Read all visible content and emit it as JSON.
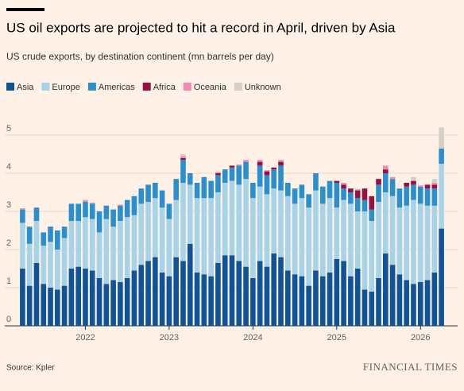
{
  "chart_data": {
    "type": "stacked_bar",
    "title": "US oil exports are projected to hit a record in April, driven by Asia",
    "subtitle": "US crude exports, by destination continent (mn barrels per day)",
    "source": "Source: Kpler",
    "brand": "FINANCIAL TIMES",
    "categories": [
      null,
      null,
      null,
      null,
      null,
      null,
      null,
      null,
      null,
      "2022",
      null,
      null,
      null,
      null,
      null,
      null,
      null,
      null,
      null,
      null,
      null,
      "2023",
      null,
      null,
      null,
      null,
      null,
      null,
      null,
      null,
      null,
      null,
      null,
      "2024",
      null,
      null,
      null,
      null,
      null,
      null,
      null,
      null,
      null,
      null,
      null,
      "2025",
      null,
      null,
      null,
      null,
      null,
      null,
      null,
      null,
      null,
      null,
      null,
      "2026",
      null,
      null,
      null
    ],
    "series": [
      {
        "name": "Asia",
        "color": "#0f5499",
        "values": [
          1.5,
          1.05,
          1.65,
          1.1,
          1.0,
          0.95,
          1.05,
          1.5,
          1.55,
          1.5,
          1.45,
          1.25,
          1.1,
          1.2,
          1.15,
          1.25,
          1.45,
          1.6,
          1.7,
          1.8,
          1.4,
          1.3,
          1.8,
          1.7,
          2.15,
          1.4,
          1.35,
          1.3,
          1.65,
          1.85,
          1.85,
          1.7,
          1.55,
          1.25,
          1.7,
          1.55,
          1.9,
          1.8,
          1.45,
          1.35,
          1.3,
          1.05,
          1.45,
          1.3,
          1.4,
          1.75,
          1.7,
          1.3,
          1.5,
          0.95,
          0.9,
          1.25,
          1.9,
          1.6,
          1.35,
          1.2,
          1.1,
          1.15,
          1.2,
          1.4,
          2.55
        ]
      },
      {
        "name": "Europe",
        "color": "#a6d3e8",
        "values": [
          1.2,
          1.1,
          1.1,
          1.0,
          1.2,
          1.05,
          1.25,
          1.25,
          1.2,
          1.35,
          1.35,
          1.2,
          1.7,
          1.4,
          1.6,
          1.6,
          1.45,
          1.6,
          1.55,
          1.55,
          1.7,
          1.5,
          1.5,
          2.05,
          1.55,
          1.95,
          2.0,
          2.05,
          1.85,
          1.9,
          1.95,
          2.0,
          2.3,
          2.1,
          1.95,
          1.9,
          1.7,
          1.75,
          1.95,
          1.85,
          2.05,
          2.05,
          2.1,
          1.9,
          1.95,
          1.35,
          1.6,
          1.9,
          1.5,
          2.05,
          1.85,
          2.0,
          1.6,
          1.8,
          1.75,
          1.95,
          2.2,
          2.05,
          1.95,
          1.75,
          1.7
        ]
      },
      {
        "name": "Americas",
        "color": "#2a8fcf",
        "values": [
          0.35,
          0.45,
          0.35,
          0.35,
          0.4,
          0.5,
          0.3,
          0.45,
          0.45,
          0.4,
          0.4,
          0.55,
          0.35,
          0.45,
          0.4,
          0.45,
          0.5,
          0.4,
          0.45,
          0.4,
          0.45,
          0.4,
          0.55,
          0.6,
          0.3,
          0.4,
          0.55,
          0.45,
          0.45,
          0.35,
          0.35,
          0.5,
          0.45,
          0.4,
          0.55,
          0.5,
          0.5,
          0.65,
          0.35,
          0.4,
          0.35,
          0.35,
          0.45,
          0.45,
          0.45,
          0.65,
          0.3,
          0.3,
          0.35,
          0.3,
          0.3,
          0.45,
          0.5,
          0.45,
          0.5,
          0.5,
          0.4,
          0.45,
          0.45,
          0.45,
          0.4
        ]
      },
      {
        "name": "Africa",
        "color": "#990f3d",
        "values": [
          0,
          0,
          0,
          0,
          0,
          0,
          0,
          0,
          0,
          0,
          0,
          0,
          0,
          0,
          0,
          0,
          0,
          0,
          0,
          0,
          0,
          0,
          0,
          0.05,
          0,
          0,
          0,
          0,
          0.05,
          0,
          0.05,
          0,
          0,
          0,
          0.1,
          0.1,
          0.05,
          0.1,
          0,
          0,
          0,
          0,
          0,
          0,
          0,
          0.05,
          0.1,
          0.1,
          0.2,
          0.3,
          0.35,
          0.15,
          0.1,
          0,
          0,
          0.1,
          0.1,
          0,
          0.1,
          0.1,
          0
        ]
      },
      {
        "name": "Oceania",
        "color": "#f08bb3",
        "values": [
          0.03,
          0,
          0,
          0,
          0,
          0,
          0,
          0,
          0,
          0.05,
          0.03,
          0,
          0,
          0,
          0.03,
          0,
          0,
          0,
          0,
          0,
          0,
          0,
          0,
          0.05,
          0,
          0,
          0,
          0,
          0.03,
          0,
          0,
          0.03,
          0.05,
          0,
          0.05,
          0.03,
          0,
          0.05,
          0,
          0,
          0,
          0,
          0,
          0,
          0,
          0,
          0.05,
          0,
          0.03,
          0,
          0,
          0,
          0.1,
          0.05,
          0,
          0,
          0,
          0.03,
          0,
          0.05,
          0
        ]
      },
      {
        "name": "Unknown",
        "color": "#d6cfc7",
        "values": [
          0,
          0,
          0,
          0,
          0,
          0,
          0,
          0,
          0,
          0,
          0,
          0,
          0,
          0,
          0,
          0,
          0,
          0,
          0,
          0,
          0,
          0,
          0,
          0.05,
          0,
          0,
          0,
          0,
          0,
          0,
          0,
          0,
          0,
          0,
          0,
          0,
          0,
          0,
          0,
          0,
          0,
          0,
          0,
          0,
          0,
          0,
          0,
          0,
          0,
          0,
          0,
          0,
          0,
          0,
          0,
          0,
          0.1,
          0,
          0,
          0.1,
          0.55
        ]
      }
    ],
    "ylim": [
      0,
      5.5
    ],
    "yticks": [
      0,
      1,
      2,
      3,
      4,
      5
    ],
    "grid": true
  }
}
